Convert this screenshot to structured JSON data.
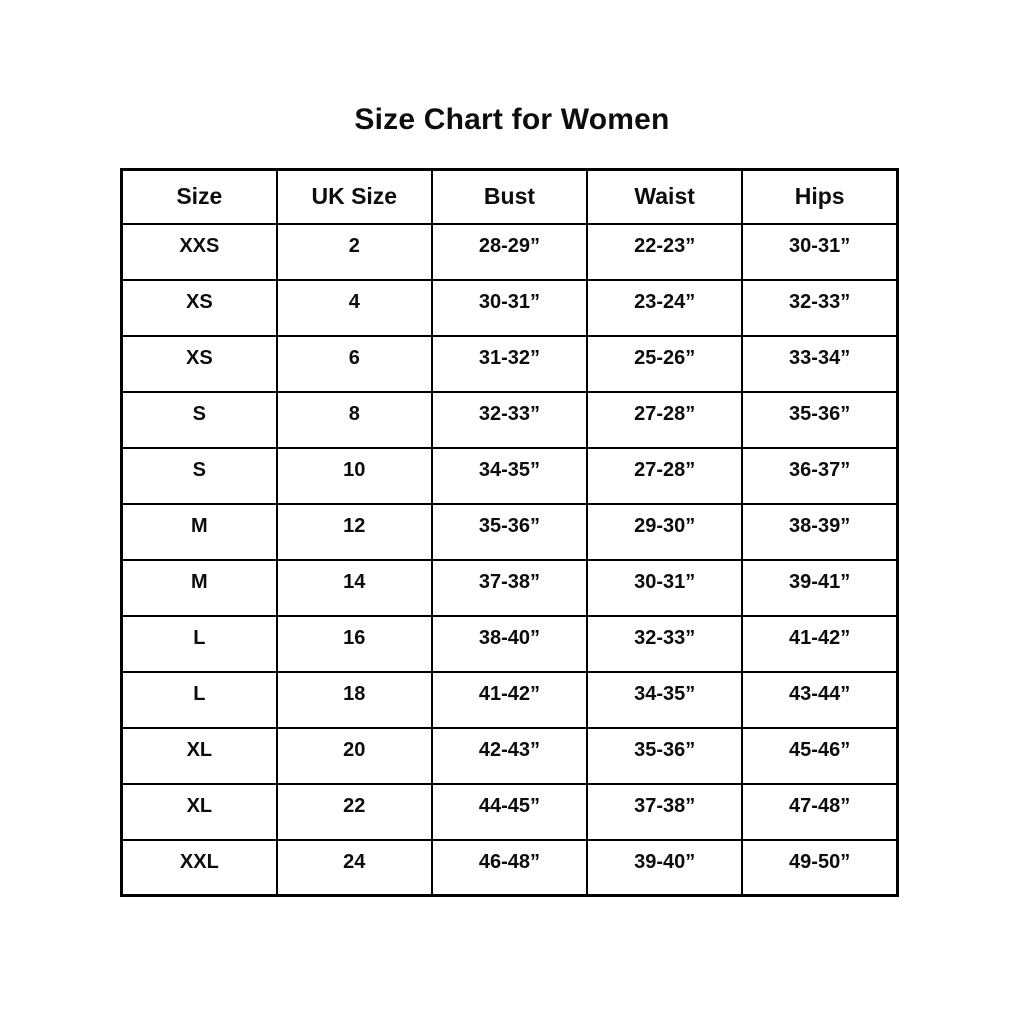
{
  "page": {
    "title": "Size Chart for Women"
  },
  "chart_data": {
    "type": "table",
    "title": "Size Chart for Women",
    "columns": [
      "Size",
      "UK Size",
      "Bust",
      "Waist",
      "Hips"
    ],
    "rows": [
      [
        "XXS",
        "2",
        "28-29”",
        "22-23”",
        "30-31”"
      ],
      [
        "XS",
        "4",
        "30-31”",
        "23-24”",
        "32-33”"
      ],
      [
        "XS",
        "6",
        "31-32”",
        "25-26”",
        "33-34”"
      ],
      [
        "S",
        "8",
        "32-33”",
        "27-28”",
        "35-36”"
      ],
      [
        "S",
        "10",
        "34-35”",
        "27-28”",
        "36-37”"
      ],
      [
        "M",
        "12",
        "35-36”",
        "29-30”",
        "38-39”"
      ],
      [
        "M",
        "14",
        "37-38”",
        "30-31”",
        "39-41”"
      ],
      [
        "L",
        "16",
        "38-40”",
        "32-33”",
        "41-42”"
      ],
      [
        "L",
        "18",
        "41-42”",
        "34-35”",
        "43-44”"
      ],
      [
        "XL",
        "20",
        "42-43”",
        "35-36”",
        "45-46”"
      ],
      [
        "XL",
        "22",
        "44-45”",
        "37-38”",
        "47-48”"
      ],
      [
        "XXL",
        "24",
        "46-48”",
        "39-40”",
        "49-50”"
      ]
    ],
    "layout": {
      "grid": "full-borders",
      "header_position": "top",
      "alignment": "center"
    },
    "colors": {
      "border": "#000000",
      "text": "#0d0d0d",
      "background": "#ffffff"
    }
  }
}
